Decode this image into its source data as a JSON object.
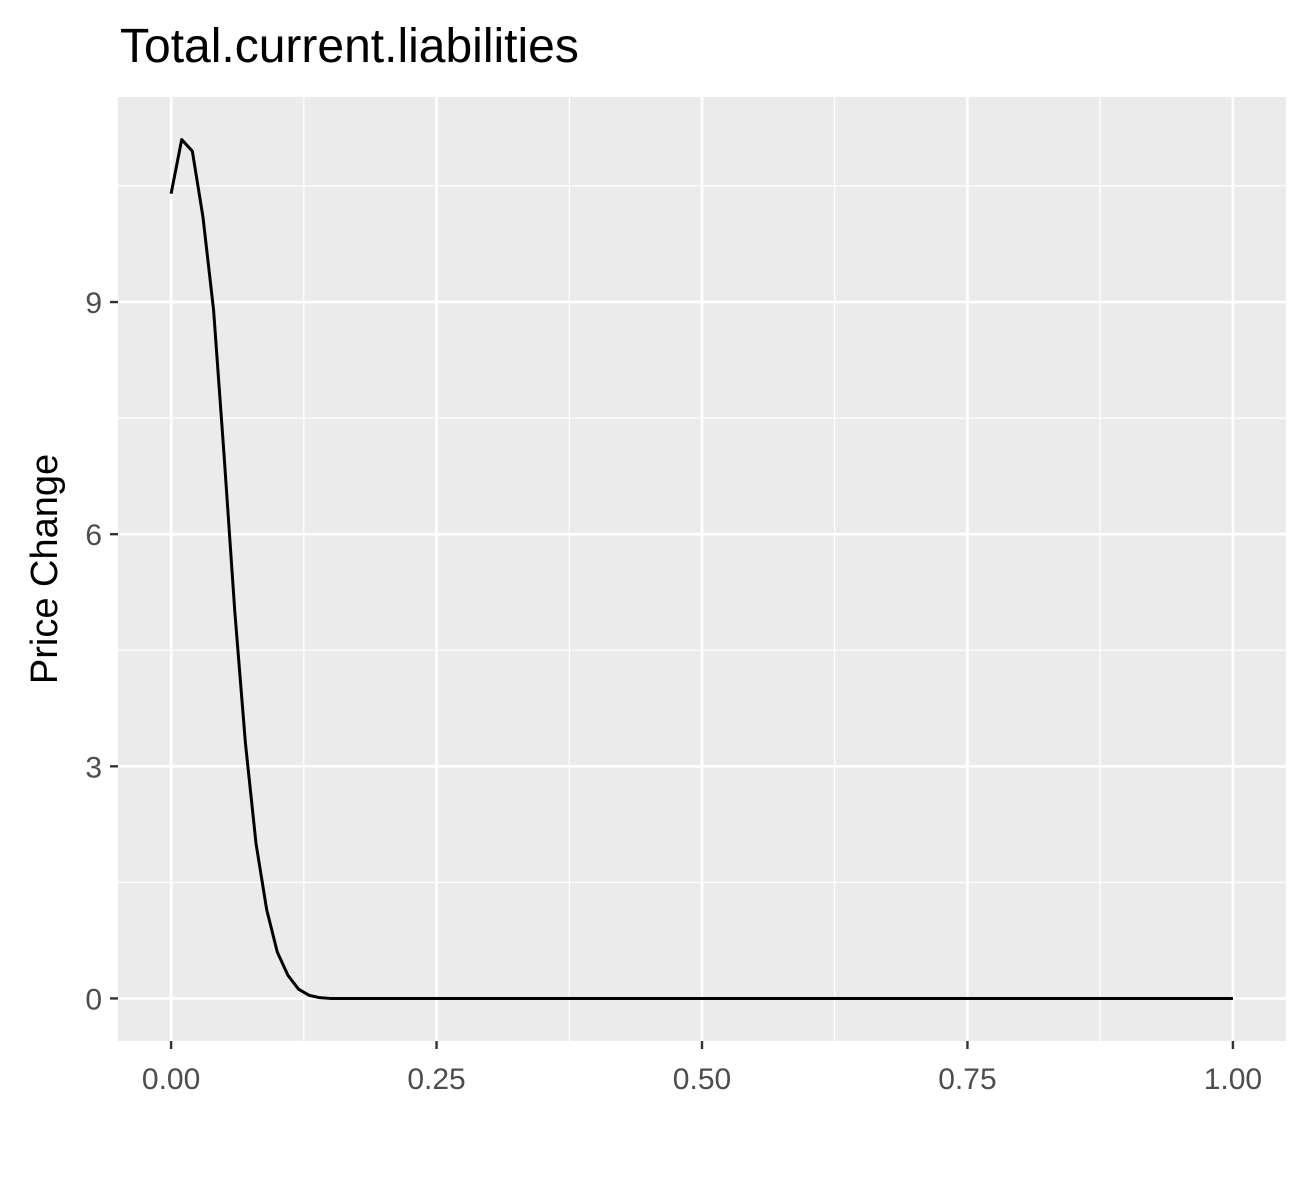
{
  "chart_data": {
    "type": "line",
    "title": "Total.current.liabilities",
    "xlabel": "",
    "ylabel": "Price Change",
    "xlim": [
      -0.05,
      1.05
    ],
    "ylim": [
      -0.55,
      11.65
    ],
    "x_ticks": [
      0,
      0.25,
      0.5,
      0.75,
      1
    ],
    "x_tick_labels": [
      "0.00",
      "0.25",
      "0.50",
      "0.75",
      "1.00"
    ],
    "y_ticks": [
      0,
      3,
      6,
      9
    ],
    "y_tick_labels": [
      "0",
      "3",
      "6",
      "9"
    ],
    "grid": true,
    "legend": "none",
    "colors": {
      "panel_bg": "#EBEBEB",
      "grid": "#FFFFFF",
      "line": "#000000",
      "tick_text": "#4D4D4D",
      "title_text": "#000000"
    },
    "series": [
      {
        "x": [
          0,
          0.01,
          0.02,
          0.03,
          0.04,
          0.05,
          0.06,
          0.07,
          0.08,
          0.09,
          0.1,
          0.11,
          0.12,
          0.13,
          0.14,
          0.15,
          0.2,
          0.3,
          0.4,
          0.5,
          0.6,
          0.7,
          0.8,
          0.9,
          1.0
        ],
        "y": [
          10.4,
          11.1,
          10.95,
          10.1,
          8.9,
          7.0,
          5.0,
          3.3,
          2.0,
          1.15,
          0.6,
          0.3,
          0.12,
          0.04,
          0.01,
          0.0,
          0.0,
          0.0,
          0.0,
          0.0,
          0.0,
          0.0,
          0.0,
          0.0,
          0.0
        ]
      }
    ]
  }
}
